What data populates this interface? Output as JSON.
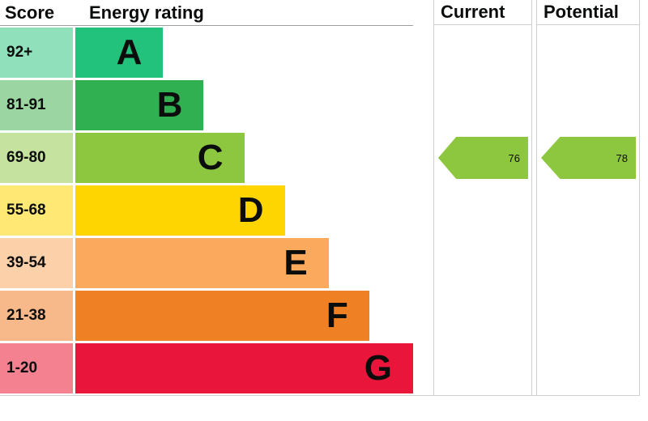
{
  "header": {
    "score": "Score",
    "energy_rating": "Energy rating",
    "current": "Current",
    "potential": "Potential"
  },
  "chart_data": {
    "type": "bar",
    "title": "Energy rating",
    "description": "EPC energy efficiency rating chart with bands A-G",
    "categories": [
      "A",
      "B",
      "C",
      "D",
      "E",
      "F",
      "G"
    ],
    "bands": [
      {
        "letter": "A",
        "score": "92+",
        "color": "#22c17c",
        "tint": "#8fe0bb",
        "width_pct": 26
      },
      {
        "letter": "B",
        "score": "81-91",
        "color": "#30b050",
        "tint": "#9ad5a2",
        "width_pct": 38
      },
      {
        "letter": "C",
        "score": "69-80",
        "color": "#8dc63f",
        "tint": "#c5e29f",
        "width_pct": 50
      },
      {
        "letter": "D",
        "score": "55-68",
        "color": "#ffd500",
        "tint": "#ffe873",
        "width_pct": 62
      },
      {
        "letter": "E",
        "score": "39-54",
        "color": "#fbaa5d",
        "tint": "#fcd0a8",
        "width_pct": 75
      },
      {
        "letter": "F",
        "score": "21-38",
        "color": "#ef8023",
        "tint": "#f8b98a",
        "width_pct": 87
      },
      {
        "letter": "G",
        "score": "1-20",
        "color": "#e9153b",
        "tint": "#f4818f",
        "width_pct": 100
      }
    ],
    "current": {
      "value": 76,
      "band": "C",
      "band_index": 2,
      "color": "#8dc63f"
    },
    "potential": {
      "value": 78,
      "band": "C",
      "band_index": 2,
      "color": "#8dc63f"
    }
  }
}
